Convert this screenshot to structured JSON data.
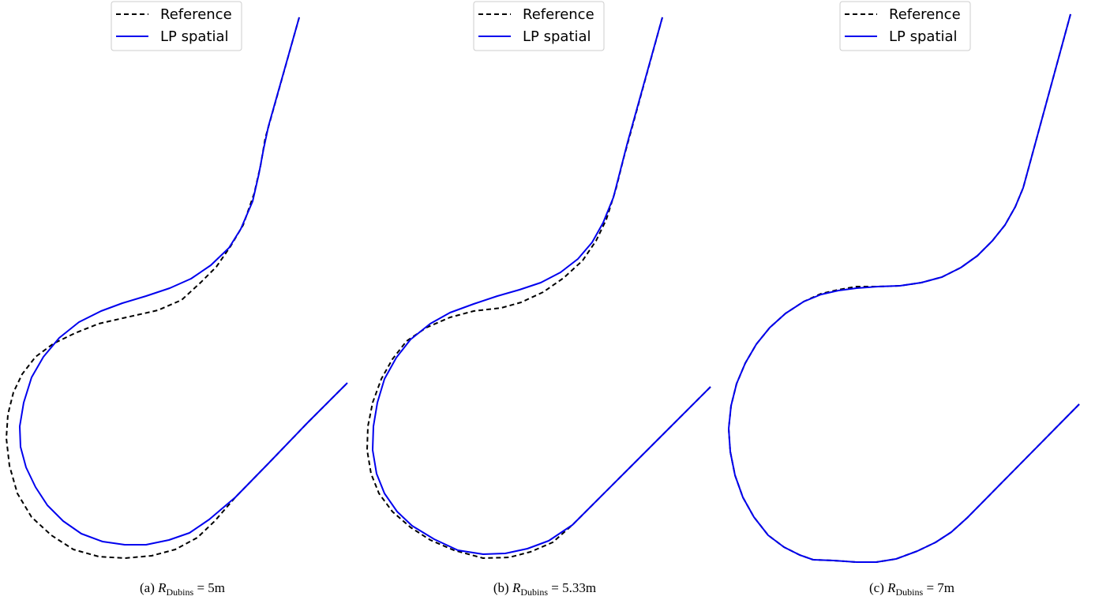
{
  "chart_data": [
    {
      "type": "line",
      "caption": {
        "prefix": "(a) ",
        "symbol": "R",
        "subscript": "Dubins",
        "suffix": " = 5m"
      },
      "legend": {
        "position": "top-center",
        "entries": [
          "Reference",
          "LP spatial"
        ]
      },
      "grid": false,
      "axes_visible": false,
      "xlim": [
        0,
        440
      ],
      "ylim": [
        0,
        720
      ],
      "series": [
        {
          "name": "Reference",
          "style": "dashed",
          "color": "#000000",
          "points": [
            [
              379,
              22
            ],
            [
              336,
              175
            ],
            [
              330,
              210
            ],
            [
              322,
              245
            ],
            [
              308,
              285
            ],
            [
              292,
              312
            ],
            [
              274,
              338
            ],
            [
              254,
              358
            ],
            [
              230,
              380
            ],
            [
              200,
              393
            ],
            [
              160,
              402
            ],
            [
              125,
              410
            ],
            [
              95,
              422
            ],
            [
              68,
              435
            ],
            [
              45,
              452
            ],
            [
              28,
              474
            ],
            [
              17,
              497
            ],
            [
              10,
              525
            ],
            [
              8,
              555
            ],
            [
              12,
              590
            ],
            [
              22,
              625
            ],
            [
              40,
              655
            ],
            [
              65,
              678
            ],
            [
              93,
              696
            ],
            [
              125,
              705
            ],
            [
              158,
              707
            ],
            [
              192,
              704
            ],
            [
              222,
              696
            ],
            [
              250,
              681
            ],
            [
              272,
              660
            ],
            [
              298,
              630
            ],
            [
              340,
              587
            ],
            [
              390,
              535
            ],
            [
              440,
              485
            ]
          ]
        },
        {
          "name": "LP spatial",
          "style": "solid",
          "color": "#0000ee",
          "points": [
            [
              379,
              22
            ],
            [
              340,
              160
            ],
            [
              334,
              188
            ],
            [
              328,
              220
            ],
            [
              320,
              255
            ],
            [
              305,
              290
            ],
            [
              290,
              314
            ],
            [
              267,
              336
            ],
            [
              242,
              353
            ],
            [
              215,
              365
            ],
            [
              185,
              375
            ],
            [
              155,
              384
            ],
            [
              128,
              394
            ],
            [
              100,
              408
            ],
            [
              75,
              428
            ],
            [
              55,
              452
            ],
            [
              40,
              478
            ],
            [
              30,
              510
            ],
            [
              25,
              540
            ],
            [
              26,
              566
            ],
            [
              33,
              592
            ],
            [
              45,
              617
            ],
            [
              60,
              640
            ],
            [
              80,
              660
            ],
            [
              103,
              676
            ],
            [
              130,
              686
            ],
            [
              158,
              690
            ],
            [
              185,
              690
            ],
            [
              214,
              684
            ],
            [
              240,
              675
            ],
            [
              265,
              658
            ],
            [
              298,
              630
            ],
            [
              340,
              587
            ],
            [
              390,
              535
            ],
            [
              440,
              485
            ]
          ]
        }
      ]
    },
    {
      "type": "line",
      "caption": {
        "prefix": "(b) ",
        "symbol": "R",
        "subscript": "Dubins",
        "suffix": " = 5.33m"
      },
      "legend": {
        "position": "top-center",
        "entries": [
          "Reference",
          "LP spatial"
        ]
      },
      "grid": false,
      "axes_visible": false,
      "xlim": [
        0,
        440
      ],
      "ylim": [
        0,
        720
      ],
      "series": [
        {
          "name": "Reference",
          "style": "dashed",
          "color": "#000000",
          "points": [
            [
              839,
              22
            ],
            [
              790,
              200
            ],
            [
              780,
              240
            ],
            [
              768,
              278
            ],
            [
              755,
              305
            ],
            [
              738,
              330
            ],
            [
              714,
              352
            ],
            [
              688,
              370
            ],
            [
              660,
              383
            ],
            [
              635,
              390
            ],
            [
              600,
              394
            ],
            [
              570,
              402
            ],
            [
              540,
              415
            ],
            [
              515,
              432
            ],
            [
              497,
              455
            ],
            [
              483,
              480
            ],
            [
              472,
              510
            ],
            [
              466,
              540
            ],
            [
              465,
              570
            ],
            [
              470,
              600
            ],
            [
              480,
              625
            ],
            [
              497,
              648
            ],
            [
              520,
              668
            ],
            [
              545,
              684
            ],
            [
              575,
              697
            ],
            [
              612,
              707
            ],
            [
              645,
              706
            ],
            [
              672,
              699
            ],
            [
              700,
              687
            ],
            [
              725,
              665
            ],
            [
              760,
              630
            ],
            [
              800,
              590
            ],
            [
              850,
              540
            ],
            [
              900,
              490
            ]
          ]
        },
        {
          "name": "LP spatial",
          "style": "solid",
          "color": "#0000ee",
          "points": [
            [
              839,
              22
            ],
            [
              795,
              180
            ],
            [
              786,
              215
            ],
            [
              777,
              250
            ],
            [
              764,
              282
            ],
            [
              750,
              307
            ],
            [
              732,
              328
            ],
            [
              710,
              345
            ],
            [
              685,
              358
            ],
            [
              658,
              367
            ],
            [
              630,
              375
            ],
            [
              600,
              385
            ],
            [
              570,
              396
            ],
            [
              545,
              410
            ],
            [
              520,
              430
            ],
            [
              502,
              453
            ],
            [
              487,
              480
            ],
            [
              478,
              510
            ],
            [
              473,
              540
            ],
            [
              472,
              570
            ],
            [
              477,
              600
            ],
            [
              487,
              625
            ],
            [
              503,
              648
            ],
            [
              522,
              666
            ],
            [
              550,
              683
            ],
            [
              580,
              697
            ],
            [
              612,
              702
            ],
            [
              640,
              701
            ],
            [
              668,
              695
            ],
            [
              695,
              685
            ],
            [
              725,
              665
            ],
            [
              760,
              630
            ],
            [
              800,
              590
            ],
            [
              850,
              540
            ],
            [
              900,
              490
            ]
          ]
        }
      ]
    },
    {
      "type": "line",
      "caption": {
        "prefix": "(c) ",
        "symbol": "R",
        "subscript": "Dubins",
        "suffix": " = 7m"
      },
      "legend": {
        "position": "top-center",
        "entries": [
          "Reference",
          "LP spatial"
        ]
      },
      "grid": false,
      "axes_visible": false,
      "xlim": [
        0,
        460
      ],
      "ylim": [
        0,
        720
      ],
      "series": [
        {
          "name": "Reference",
          "style": "dashed",
          "color": "#000000",
          "points": [
            [
              1356,
              18
            ],
            [
              1296,
              238
            ],
            [
              1286,
              262
            ],
            [
              1273,
              285
            ],
            [
              1257,
              305
            ],
            [
              1238,
              324
            ],
            [
              1217,
              339
            ],
            [
              1193,
              351
            ],
            [
              1167,
              358
            ],
            [
              1140,
              362
            ],
            [
              1112,
              363
            ],
            [
              1085,
              363
            ],
            [
              1062,
              367
            ],
            [
              1040,
              372
            ],
            [
              1018,
              382
            ],
            [
              995,
              397
            ],
            [
              975,
              415
            ],
            [
              958,
              436
            ],
            [
              944,
              460
            ],
            [
              933,
              486
            ],
            [
              926,
              514
            ],
            [
              923,
              543
            ],
            [
              925,
              572
            ],
            [
              931,
              602
            ],
            [
              941,
              630
            ],
            [
              955,
              655
            ],
            [
              973,
              678
            ],
            [
              993,
              693
            ],
            [
              1013,
              703
            ],
            [
              1030,
              709
            ],
            [
              1056,
              710
            ],
            [
              1085,
              712
            ],
            [
              1110,
              712
            ],
            [
              1135,
              708
            ],
            [
              1162,
              698
            ],
            [
              1185,
              687
            ],
            [
              1205,
              674
            ],
            [
              1225,
              656
            ],
            [
              1367,
              512
            ]
          ]
        },
        {
          "name": "LP spatial",
          "style": "solid",
          "color": "#0000ee",
          "points": [
            [
              1356,
              18
            ],
            [
              1296,
              238
            ],
            [
              1286,
              262
            ],
            [
              1273,
              285
            ],
            [
              1257,
              305
            ],
            [
              1238,
              324
            ],
            [
              1217,
              339
            ],
            [
              1193,
              351
            ],
            [
              1167,
              358
            ],
            [
              1140,
              362
            ],
            [
              1112,
              363
            ],
            [
              1085,
              365
            ],
            [
              1062,
              368
            ],
            [
              1040,
              373
            ],
            [
              1018,
              382
            ],
            [
              995,
              397
            ],
            [
              975,
              415
            ],
            [
              958,
              436
            ],
            [
              944,
              460
            ],
            [
              933,
              486
            ],
            [
              926,
              514
            ],
            [
              923,
              543
            ],
            [
              925,
              572
            ],
            [
              931,
              602
            ],
            [
              941,
              630
            ],
            [
              955,
              655
            ],
            [
              973,
              678
            ],
            [
              993,
              693
            ],
            [
              1013,
              703
            ],
            [
              1030,
              709
            ],
            [
              1056,
              710
            ],
            [
              1085,
              712
            ],
            [
              1110,
              712
            ],
            [
              1135,
              708
            ],
            [
              1162,
              698
            ],
            [
              1185,
              687
            ],
            [
              1205,
              674
            ],
            [
              1225,
              656
            ],
            [
              1367,
              512
            ]
          ]
        }
      ]
    }
  ]
}
